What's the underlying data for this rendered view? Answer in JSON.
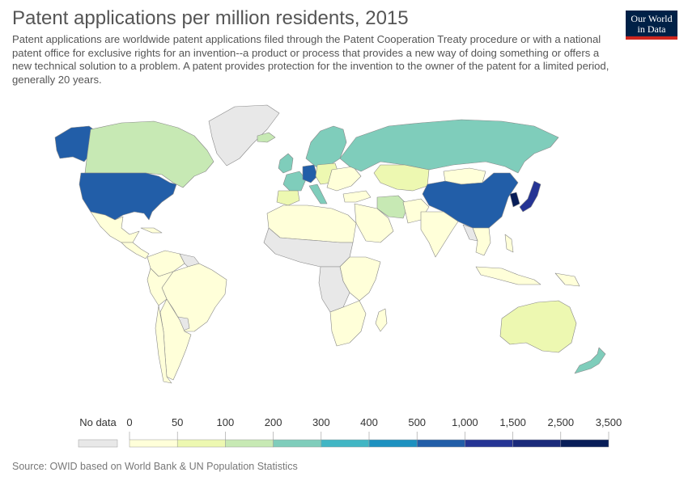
{
  "header": {
    "title": "Patent applications per million residents, 2015",
    "subtitle": "Patent applications are worldwide patent applications filed through the Patent Cooperation Treaty procedure or with a national patent office for exclusive rights for an invention--a product or process that provides a new way of doing something or offers a new technical solution to a problem. A patent provides protection for the invention to the owner of the patent for a limited period, generally 20 years."
  },
  "logo": {
    "line1": "Our World",
    "line2": "in Data"
  },
  "legend": {
    "no_data_label": "No data",
    "no_data_color": "#e8e8e8",
    "bins": [
      "0",
      "50",
      "100",
      "200",
      "300",
      "400",
      "500",
      "1,000",
      "1,500",
      "2,500",
      "3,500"
    ],
    "colors": [
      "#ffffd9",
      "#edf8b1",
      "#c7e9b4",
      "#7fcdbb",
      "#41b6c4",
      "#1d91c0",
      "#225ea8",
      "#253494",
      "#1a2a7a",
      "#081d58"
    ]
  },
  "source": "Source: OWID based on World Bank & UN Population Statistics"
}
